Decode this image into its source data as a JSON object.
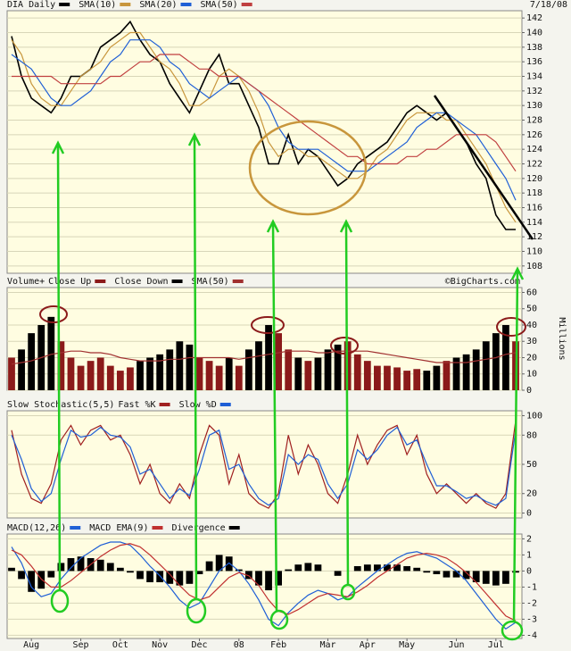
{
  "chart_data": [
    {
      "type": "line",
      "date": "7/18/08",
      "ylim": [
        107,
        143
      ],
      "yticks": [
        108,
        110,
        112,
        114,
        116,
        118,
        120,
        122,
        124,
        126,
        128,
        130,
        132,
        134,
        136,
        138,
        140,
        142
      ],
      "grid": true,
      "series": [
        {
          "name": "DIA Daily",
          "color": "#000000",
          "values": [
            139.5,
            134,
            131,
            130,
            129,
            131,
            134,
            134,
            135,
            138,
            139,
            140,
            141.5,
            139,
            137,
            136,
            133,
            131,
            129,
            132,
            135,
            137,
            133,
            133,
            130,
            127,
            122,
            122,
            126,
            122,
            124,
            123,
            121,
            119,
            120,
            122,
            123,
            124,
            125,
            127,
            129,
            130,
            129,
            128,
            129,
            127,
            125,
            122,
            120,
            115,
            113,
            113
          ]
        },
        {
          "name": "SMA(10)",
          "color": "#c8963c",
          "values": [
            139,
            137,
            133,
            131,
            130,
            130,
            132,
            134,
            135,
            136,
            138,
            139,
            140,
            140,
            138,
            136,
            135,
            133,
            130,
            130,
            131,
            134,
            135,
            134,
            132,
            129,
            125,
            123,
            124,
            124,
            123,
            123,
            122,
            121,
            120,
            120,
            121,
            123,
            124,
            126,
            128,
            129,
            129,
            129,
            128,
            128,
            126,
            124,
            122,
            119,
            116,
            114
          ]
        },
        {
          "name": "SMA(20)",
          "color": "#1f5fd6",
          "values": [
            137,
            136,
            135,
            133,
            131,
            130,
            130,
            131,
            132,
            134,
            136,
            137,
            139,
            139,
            139,
            138,
            136,
            135,
            133,
            132,
            131,
            132,
            133,
            134,
            133,
            132,
            130,
            127,
            125,
            124,
            124,
            124,
            123,
            122,
            121,
            121,
            121,
            122,
            123,
            124,
            125,
            127,
            128,
            129,
            129,
            128,
            127,
            126,
            124,
            122,
            120,
            117
          ]
        },
        {
          "name": "SMA(50)",
          "color": "#c04040",
          "values": [
            134,
            134,
            134,
            134,
            134,
            133,
            133,
            133,
            133,
            133,
            134,
            134,
            135,
            136,
            136,
            137,
            137,
            137,
            136,
            135,
            135,
            134,
            134,
            134,
            133,
            132,
            131,
            130,
            129,
            128,
            127,
            126,
            125,
            124,
            123,
            123,
            122,
            122,
            122,
            122,
            123,
            123,
            124,
            124,
            125,
            126,
            126,
            126,
            126,
            125,
            123,
            121
          ]
        }
      ]
    },
    {
      "type": "bar",
      "title": "Volume+",
      "source": "©BigCharts.com",
      "y_label": "Millions",
      "ylim": [
        0,
        63
      ],
      "yticks": [
        0,
        10,
        20,
        30,
        40,
        50,
        60
      ],
      "grid": true,
      "series": [
        {
          "name": "Close Up",
          "color": "#8b1a1a",
          "values": [
            20,
            null,
            null,
            null,
            null,
            30,
            20,
            15,
            18,
            20,
            15,
            12,
            14,
            null,
            null,
            null,
            null,
            null,
            null,
            20,
            18,
            15,
            null,
            15,
            null,
            null,
            null,
            35,
            25,
            null,
            18,
            null,
            null,
            null,
            30,
            22,
            18,
            15,
            15,
            14,
            12,
            13,
            null,
            null,
            18,
            null,
            null,
            null,
            null,
            null,
            null,
            30
          ]
        },
        {
          "name": "Close Down",
          "color": "#000000",
          "values": [
            null,
            25,
            35,
            40,
            45,
            null,
            null,
            null,
            null,
            null,
            null,
            null,
            null,
            18,
            20,
            22,
            25,
            30,
            28,
            null,
            null,
            null,
            20,
            null,
            25,
            30,
            40,
            null,
            null,
            20,
            null,
            20,
            25,
            28,
            null,
            null,
            null,
            null,
            null,
            null,
            null,
            null,
            12,
            15,
            null,
            20,
            22,
            25,
            30,
            35,
            40,
            null
          ]
        },
        {
          "name": "SMA(50)",
          "color": "#a03030",
          "style": "line",
          "values": [
            16,
            17,
            18,
            20,
            22,
            23,
            24,
            24,
            23,
            23,
            22,
            20,
            19,
            18,
            18,
            18,
            19,
            19,
            20,
            20,
            20,
            20,
            20,
            19,
            20,
            21,
            22,
            23,
            24,
            24,
            24,
            23,
            23,
            24,
            24,
            24,
            24,
            23,
            22,
            21,
            20,
            19,
            18,
            17,
            17,
            17,
            17,
            18,
            19,
            20,
            22,
            23
          ]
        }
      ]
    },
    {
      "type": "line",
      "title": "Slow Stochastic(5,5)",
      "ylim": [
        -5,
        105
      ],
      "yticks": [
        0,
        20,
        50,
        80,
        100
      ],
      "grid": true,
      "series": [
        {
          "name": "Fast %K",
          "color": "#a02020",
          "values": [
            85,
            40,
            15,
            10,
            30,
            75,
            90,
            70,
            85,
            90,
            75,
            80,
            60,
            30,
            50,
            20,
            10,
            30,
            15,
            60,
            90,
            80,
            30,
            60,
            20,
            10,
            5,
            20,
            80,
            40,
            70,
            50,
            20,
            10,
            40,
            80,
            50,
            70,
            85,
            90,
            60,
            80,
            40,
            20,
            30,
            20,
            10,
            20,
            10,
            5,
            20,
            95
          ]
        },
        {
          "name": "Slow %D",
          "color": "#1f5fd6",
          "values": [
            80,
            55,
            25,
            12,
            20,
            55,
            85,
            78,
            80,
            88,
            80,
            78,
            68,
            40,
            45,
            30,
            15,
            25,
            18,
            45,
            80,
            85,
            45,
            50,
            30,
            15,
            8,
            15,
            60,
            50,
            60,
            55,
            30,
            15,
            30,
            65,
            55,
            65,
            80,
            88,
            70,
            75,
            50,
            28,
            28,
            22,
            15,
            18,
            12,
            8,
            15,
            85
          ]
        }
      ]
    },
    {
      "type": "line",
      "ylim": [
        -4.2,
        2.3
      ],
      "yticks": [
        -4,
        -3,
        -2,
        -1,
        0,
        1,
        2
      ],
      "grid": true,
      "categories": [
        null,
        null,
        "Aug",
        null,
        null,
        null,
        null,
        "Sep",
        null,
        null,
        null,
        "Oct",
        null,
        null,
        null,
        "Nov",
        null,
        null,
        null,
        "Dec",
        null,
        null,
        null,
        "08",
        null,
        null,
        null,
        "Feb",
        null,
        null,
        null,
        null,
        "Mar",
        null,
        null,
        null,
        "Apr",
        null,
        null,
        null,
        "May",
        null,
        null,
        null,
        null,
        "Jun",
        null,
        null,
        null,
        "Jul",
        null,
        null
      ],
      "series": [
        {
          "name": "MACD(12,26)",
          "color": "#1f5fd6",
          "values": [
            1.5,
            0.5,
            -1,
            -1.6,
            -1.4,
            -0.5,
            0.2,
            0.8,
            1.2,
            1.6,
            1.8,
            1.8,
            1.6,
            1,
            0.3,
            -0.3,
            -1,
            -1.8,
            -2.3,
            -2,
            -1,
            0,
            0.5,
            0,
            -0.8,
            -1.8,
            -3,
            -3.4,
            -2.6,
            -2,
            -1.5,
            -1.2,
            -1.4,
            -1.8,
            -1.6,
            -1,
            -0.5,
            0,
            0.4,
            0.8,
            1.1,
            1.2,
            1,
            0.8,
            0.4,
            0,
            -0.6,
            -1.4,
            -2.2,
            -3,
            -3.6,
            -3.2
          ]
        },
        {
          "name": "MACD EMA(9)",
          "color": "#c03030",
          "values": [
            1.3,
            1,
            0.3,
            -0.5,
            -1,
            -1,
            -0.6,
            -0.1,
            0.4,
            0.9,
            1.3,
            1.6,
            1.7,
            1.5,
            1,
            0.4,
            -0.2,
            -0.9,
            -1.5,
            -1.8,
            -1.6,
            -1,
            -0.4,
            -0.1,
            -0.3,
            -0.9,
            -1.8,
            -2.5,
            -2.7,
            -2.4,
            -2,
            -1.6,
            -1.4,
            -1.5,
            -1.6,
            -1.3,
            -0.9,
            -0.4,
            0,
            0.4,
            0.8,
            1,
            1.1,
            1,
            0.8,
            0.4,
            -0.1,
            -0.7,
            -1.4,
            -2.1,
            -2.8,
            -3.1
          ]
        },
        {
          "name": "Divergence",
          "color": "#000000",
          "style": "bar",
          "values": [
            0.2,
            -0.5,
            -1.3,
            -1.1,
            -0.4,
            0.5,
            0.8,
            0.9,
            0.8,
            0.7,
            0.5,
            0.2,
            -0.1,
            -0.5,
            -0.7,
            -0.7,
            -0.8,
            -0.9,
            -0.8,
            -0.2,
            0.6,
            1,
            0.9,
            0.1,
            -0.5,
            -0.9,
            -1.2,
            -0.9,
            0.1,
            0.4,
            0.5,
            0.4,
            0,
            -0.3,
            0,
            0.3,
            0.4,
            0.4,
            0.4,
            0.4,
            0.3,
            0.2,
            -0.1,
            -0.2,
            -0.4,
            -0.4,
            -0.5,
            -0.7,
            -0.8,
            -0.9,
            -0.8,
            -0.1
          ]
        }
      ]
    }
  ]
}
